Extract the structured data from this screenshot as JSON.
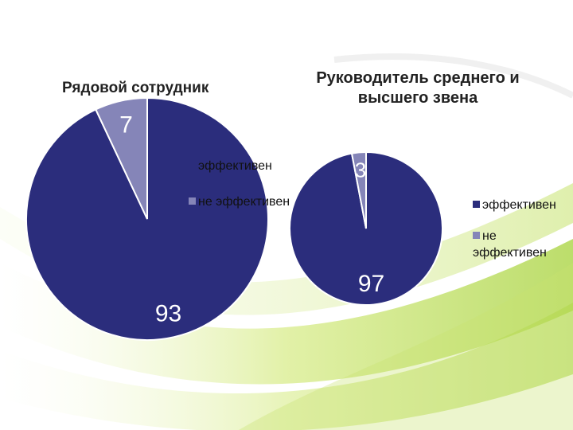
{
  "chart_data": [
    {
      "type": "pie",
      "title": "Рядовой сотрудник",
      "categories": [
        "эффективен",
        "не эффективен"
      ],
      "values": [
        93,
        7
      ],
      "colors": [
        "#2b2d7c",
        "#8585b8"
      ],
      "legend_position": "right"
    },
    {
      "type": "pie",
      "title": "Руководитель среднего и высшего звена",
      "categories": [
        "эффективен",
        "не эффективен"
      ],
      "values": [
        97,
        3
      ],
      "colors": [
        "#2b2d7c",
        "#8585b8"
      ],
      "legend_position": "right"
    }
  ]
}
